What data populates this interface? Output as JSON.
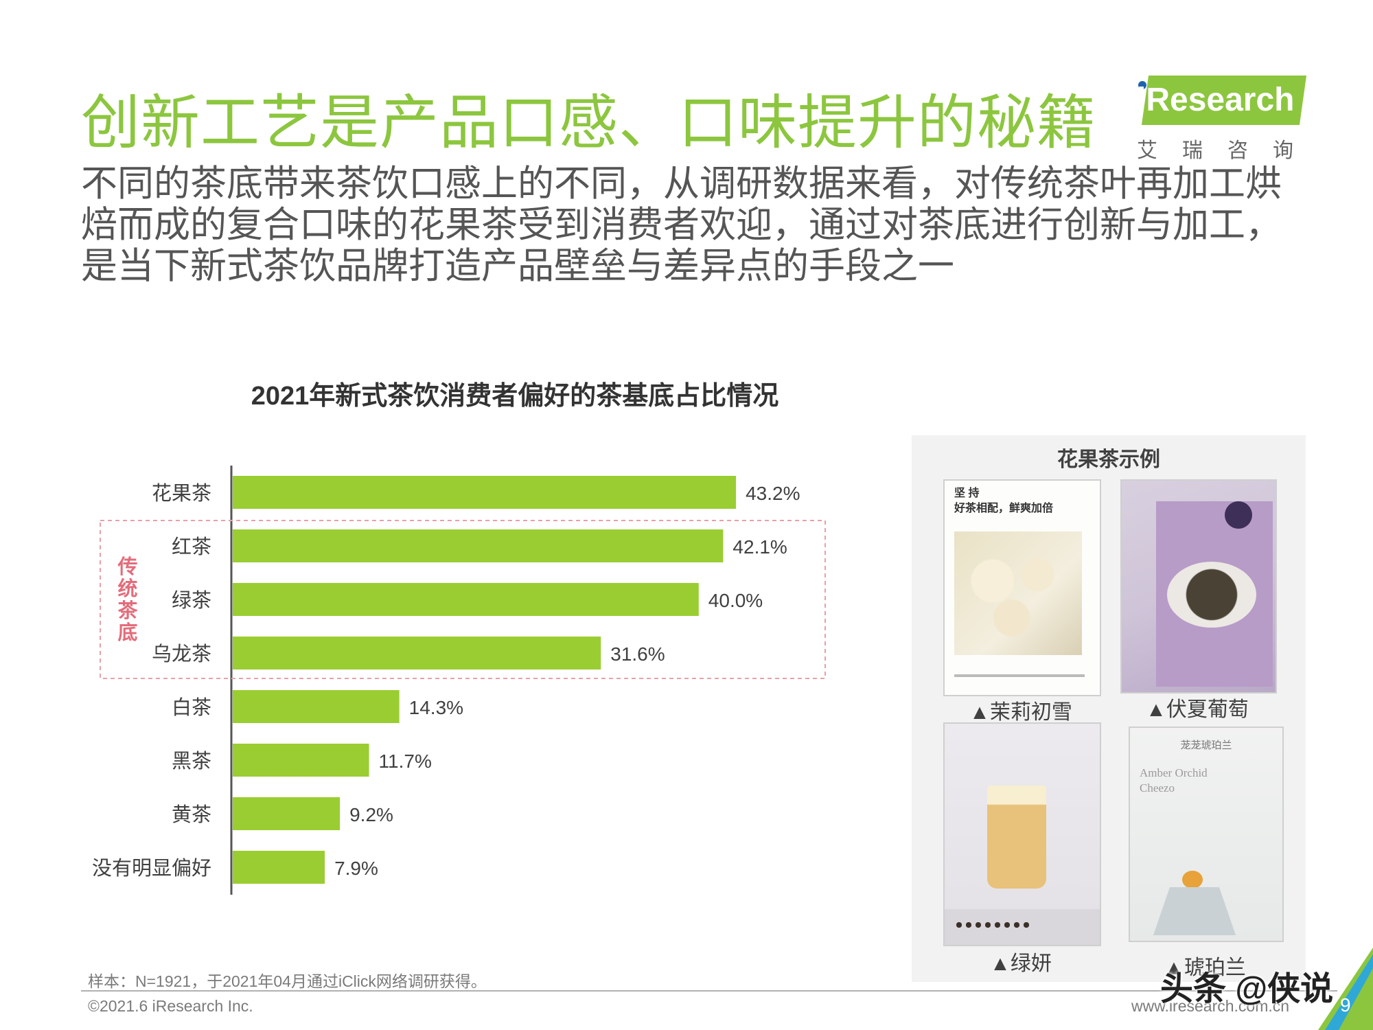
{
  "header": {
    "title": "创新工艺是产品口感、口味提升的秘籍",
    "subtitle": "不同的茶底带来茶饮口感上的不同，从调研数据来看，对传统茶叶再加工烘焙而成的复合口味的花果茶受到消费者欢迎，通过对茶底进行创新与加工，是当下新式茶饮品牌打造产品壁垒与差异点的手段之一"
  },
  "logo": {
    "text": "iResearch",
    "cn": "艾瑞咨询"
  },
  "colors": {
    "accent_green": "#8cc63e",
    "bar_green": "#9acd32",
    "highlight_pink": "#e8a0a8",
    "highlight_label": "#e36c7a"
  },
  "chart_data": {
    "type": "bar",
    "orientation": "horizontal",
    "title": "2021年新式茶饮消费者偏好的茶基底占比情况",
    "categories": [
      "花果茶",
      "红茶",
      "绿茶",
      "乌龙茶",
      "白茶",
      "黑茶",
      "黄茶",
      "没有明显偏好"
    ],
    "values": [
      43.2,
      42.1,
      40.0,
      31.6,
      14.3,
      11.7,
      9.2,
      7.9
    ],
    "value_labels": [
      "43.2%",
      "42.1%",
      "40.0%",
      "31.6%",
      "14.3%",
      "11.7%",
      "9.2%",
      "7.9%"
    ],
    "xlim": [
      0,
      50
    ],
    "grid": false,
    "annotation": {
      "label": "传统茶底",
      "categories": [
        "红茶",
        "绿茶",
        "乌龙茶"
      ]
    }
  },
  "panel": {
    "title": "花果茶示例",
    "items": [
      {
        "caption": "▲茉莉初雪",
        "text_lines": [
          "坚 持",
          "好茶相配，鲜爽加倍"
        ]
      },
      {
        "caption": "▲伏夏葡萄"
      },
      {
        "caption": "▲绿妍"
      },
      {
        "caption": "▲琥珀兰",
        "text_lines": [
          "茏茏琥珀兰",
          "Amber Orchid",
          "Cheezo"
        ]
      }
    ]
  },
  "footer": {
    "sample_note": "样本：N=1921，于2021年04月通过iClick网络调研获得。",
    "copyright": "©2021.6 iResearch Inc.",
    "website": "www.iresearch.com.cn",
    "page_number": "9",
    "watermark": "头条 @侠说"
  }
}
